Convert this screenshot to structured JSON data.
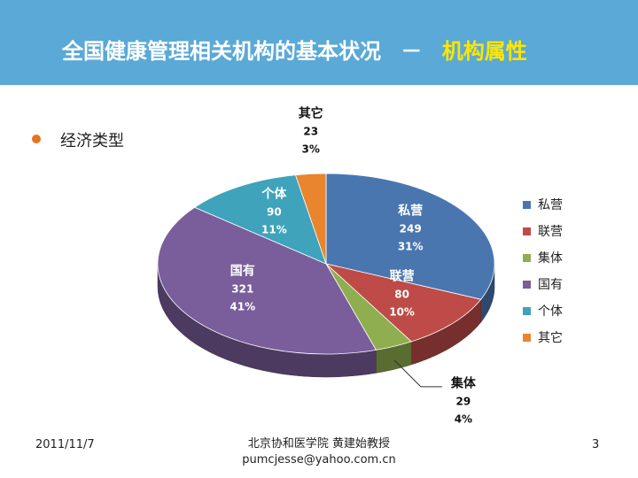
{
  "header": {
    "title_main": "全国健康管理相关机构的基本状况",
    "title_sep": "－",
    "title_accent": "机构属性"
  },
  "bullet": {
    "text": "经济类型"
  },
  "chart_data": {
    "type": "pie",
    "style": "3d",
    "legend_position": "right",
    "slices": [
      {
        "label": "私营",
        "value": 249,
        "percent": "31%",
        "color": "#4a76b0"
      },
      {
        "label": "联营",
        "value": 80,
        "percent": "10%",
        "color": "#be4b48"
      },
      {
        "label": "集体",
        "value": 29,
        "percent": "4%",
        "color": "#8fae4f"
      },
      {
        "label": "国有",
        "value": 321,
        "percent": "41%",
        "color": "#7a5e9b"
      },
      {
        "label": "个体",
        "value": 90,
        "percent": "11%",
        "color": "#3ea3bb"
      },
      {
        "label": "其它",
        "value": 23,
        "percent": "3%",
        "color": "#e8852e"
      }
    ]
  },
  "footer": {
    "date": "2011/11/7",
    "author": "北京协和医学院 黄建始教授",
    "email": "pumcjesse@yahoo.com.cn",
    "page": "3"
  }
}
